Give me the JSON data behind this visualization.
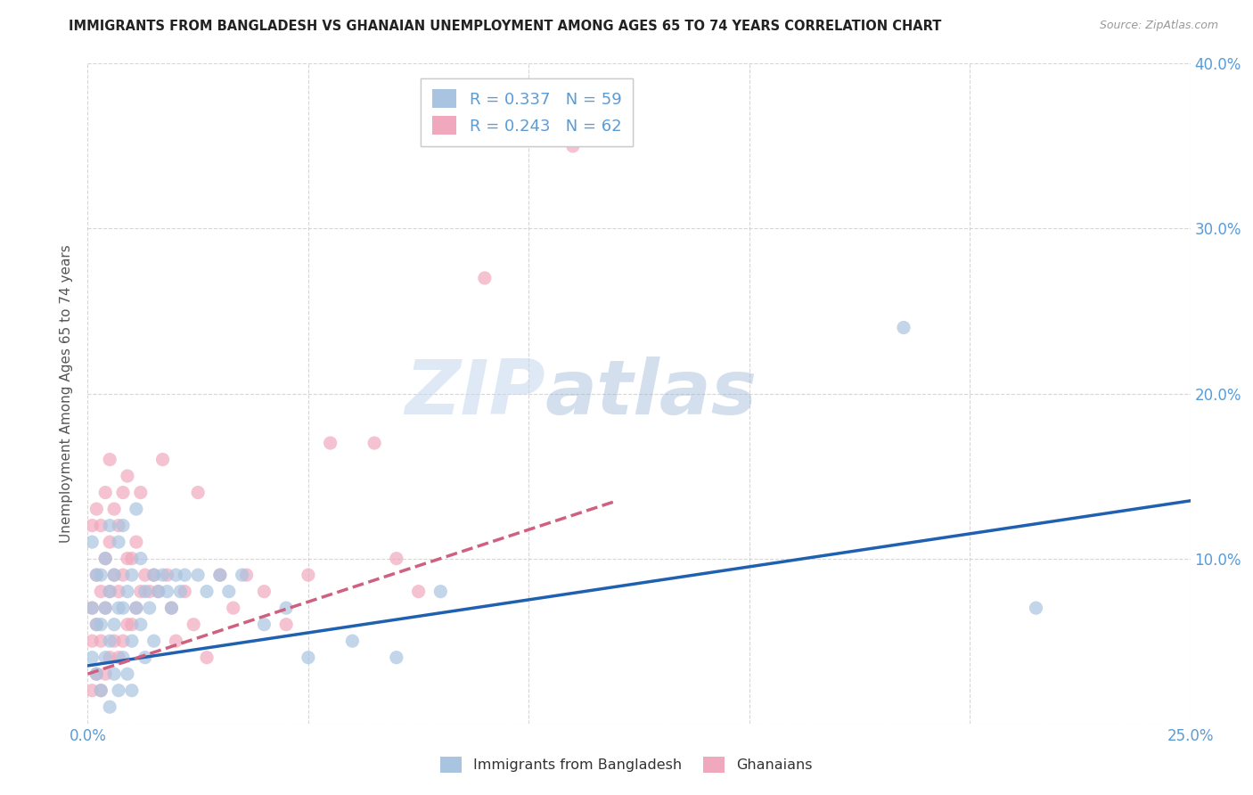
{
  "title": "IMMIGRANTS FROM BANGLADESH VS GHANAIAN UNEMPLOYMENT AMONG AGES 65 TO 74 YEARS CORRELATION CHART",
  "source": "Source: ZipAtlas.com",
  "ylabel": "Unemployment Among Ages 65 to 74 years",
  "xlim": [
    0.0,
    0.25
  ],
  "ylim": [
    0.0,
    0.4
  ],
  "xticks": [
    0.0,
    0.05,
    0.1,
    0.15,
    0.2,
    0.25
  ],
  "yticks": [
    0.0,
    0.1,
    0.2,
    0.3,
    0.4
  ],
  "xtick_labels": [
    "0.0%",
    "",
    "",
    "",
    "",
    "25.0%"
  ],
  "ytick_labels_right": [
    "",
    "10.0%",
    "20.0%",
    "30.0%",
    "40.0%"
  ],
  "legend_R1": "R = 0.337",
  "legend_N1": "N = 59",
  "legend_R2": "R = 0.243",
  "legend_N2": "N = 62",
  "color_blue": "#a8c4e0",
  "color_pink": "#f0a8bc",
  "line_blue": "#2060b0",
  "line_pink": "#d06080",
  "watermark_zip": "ZIP",
  "watermark_atlas": "atlas",
  "bg_color": "#ffffff",
  "blue_scatter_x": [
    0.001,
    0.001,
    0.001,
    0.002,
    0.002,
    0.002,
    0.003,
    0.003,
    0.003,
    0.004,
    0.004,
    0.004,
    0.005,
    0.005,
    0.005,
    0.005,
    0.006,
    0.006,
    0.006,
    0.007,
    0.007,
    0.007,
    0.008,
    0.008,
    0.008,
    0.009,
    0.009,
    0.01,
    0.01,
    0.01,
    0.011,
    0.011,
    0.012,
    0.012,
    0.013,
    0.013,
    0.014,
    0.015,
    0.015,
    0.016,
    0.017,
    0.018,
    0.019,
    0.02,
    0.021,
    0.022,
    0.025,
    0.027,
    0.03,
    0.032,
    0.035,
    0.04,
    0.045,
    0.05,
    0.06,
    0.07,
    0.08,
    0.185,
    0.215
  ],
  "blue_scatter_y": [
    0.04,
    0.07,
    0.11,
    0.03,
    0.06,
    0.09,
    0.02,
    0.06,
    0.09,
    0.04,
    0.07,
    0.1,
    0.01,
    0.05,
    0.08,
    0.12,
    0.03,
    0.06,
    0.09,
    0.02,
    0.07,
    0.11,
    0.04,
    0.07,
    0.12,
    0.03,
    0.08,
    0.02,
    0.05,
    0.09,
    0.07,
    0.13,
    0.06,
    0.1,
    0.04,
    0.08,
    0.07,
    0.05,
    0.09,
    0.08,
    0.09,
    0.08,
    0.07,
    0.09,
    0.08,
    0.09,
    0.09,
    0.08,
    0.09,
    0.08,
    0.09,
    0.06,
    0.07,
    0.04,
    0.05,
    0.04,
    0.08,
    0.24,
    0.07
  ],
  "pink_scatter_x": [
    0.001,
    0.001,
    0.001,
    0.001,
    0.002,
    0.002,
    0.002,
    0.002,
    0.003,
    0.003,
    0.003,
    0.003,
    0.004,
    0.004,
    0.004,
    0.004,
    0.005,
    0.005,
    0.005,
    0.005,
    0.006,
    0.006,
    0.006,
    0.007,
    0.007,
    0.007,
    0.008,
    0.008,
    0.008,
    0.009,
    0.009,
    0.009,
    0.01,
    0.01,
    0.011,
    0.011,
    0.012,
    0.012,
    0.013,
    0.014,
    0.015,
    0.016,
    0.017,
    0.018,
    0.019,
    0.02,
    0.022,
    0.024,
    0.025,
    0.027,
    0.03,
    0.033,
    0.036,
    0.04,
    0.045,
    0.05,
    0.055,
    0.065,
    0.07,
    0.075,
    0.09,
    0.11
  ],
  "pink_scatter_y": [
    0.02,
    0.05,
    0.07,
    0.12,
    0.03,
    0.06,
    0.09,
    0.13,
    0.02,
    0.05,
    0.08,
    0.12,
    0.03,
    0.07,
    0.1,
    0.14,
    0.04,
    0.08,
    0.11,
    0.16,
    0.05,
    0.09,
    0.13,
    0.04,
    0.08,
    0.12,
    0.05,
    0.09,
    0.14,
    0.06,
    0.1,
    0.15,
    0.06,
    0.1,
    0.07,
    0.11,
    0.08,
    0.14,
    0.09,
    0.08,
    0.09,
    0.08,
    0.16,
    0.09,
    0.07,
    0.05,
    0.08,
    0.06,
    0.14,
    0.04,
    0.09,
    0.07,
    0.09,
    0.08,
    0.06,
    0.09,
    0.17,
    0.17,
    0.1,
    0.08,
    0.27,
    0.35
  ],
  "blue_line_x": [
    0.0,
    0.25
  ],
  "blue_line_y": [
    0.035,
    0.135
  ],
  "pink_line_x": [
    0.0,
    0.12
  ],
  "pink_line_y": [
    0.03,
    0.135
  ]
}
